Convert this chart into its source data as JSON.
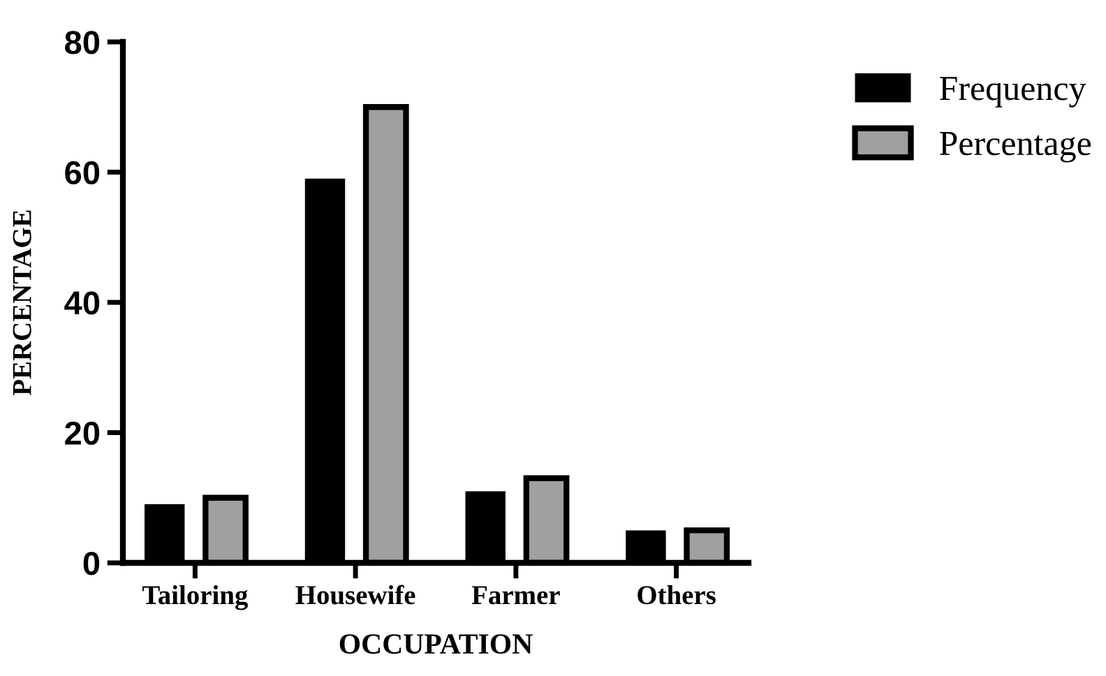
{
  "chart_data": {
    "type": "bar",
    "xlabel": "OCCUPATION",
    "ylabel": "PERCENTAGE",
    "categories": [
      "Tailoring",
      "Housewife",
      "Farmer",
      "Others"
    ],
    "series": [
      {
        "name": "Frequency",
        "color": "#000000",
        "values": [
          9,
          59,
          11,
          5
        ]
      },
      {
        "name": "Percentage",
        "color": "#a0a0a0",
        "values": [
          10,
          70,
          13,
          5
        ]
      }
    ],
    "ylim": [
      0,
      80
    ],
    "yticks": [
      0,
      20,
      40,
      60,
      80
    ],
    "grid": false,
    "legend": "top right"
  }
}
